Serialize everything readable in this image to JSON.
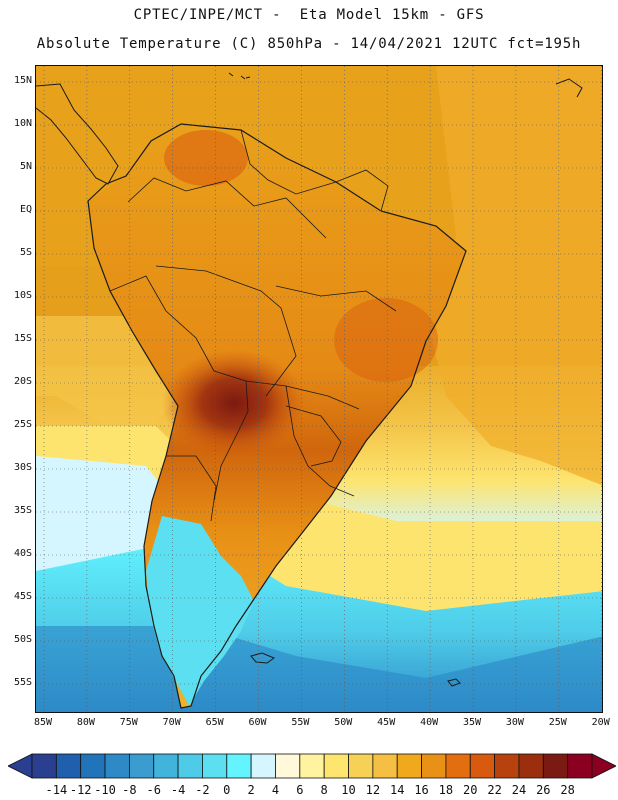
{
  "header": {
    "title_line_1": "CPTEC/INPE/MCT -  Eta Model 15km - GFS",
    "title_line_2": "Absolute Temperature (C) 850hPa - 14/04/2021 12UTC fct=195h"
  },
  "map": {
    "latitude_labels": [
      "15N",
      "10N",
      "5N",
      "EQ",
      "5S",
      "10S",
      "15S",
      "20S",
      "25S",
      "30S",
      "35S",
      "40S",
      "45S",
      "50S",
      "55S"
    ],
    "longitude_labels": [
      "85W",
      "80W",
      "75W",
      "70W",
      "65W",
      "60W",
      "55W",
      "50W",
      "45W",
      "40W",
      "35W",
      "30W",
      "25W",
      "20W"
    ]
  },
  "legend": {
    "labels": [
      "-14",
      "-12",
      "-10",
      "-8",
      "-6",
      "-4",
      "-2",
      "0",
      "2",
      "4",
      "6",
      "8",
      "10",
      "12",
      "14",
      "16",
      "18",
      "20",
      "22",
      "24",
      "26",
      "28"
    ],
    "colors": [
      "#2a3f8f",
      "#1f5fae",
      "#2174b9",
      "#2d8ac7",
      "#3b9ccf",
      "#42b4dc",
      "#4ecbe8",
      "#5cdff0",
      "#63f4ff",
      "#d6f6ff",
      "#fff8db",
      "#fff3a0",
      "#fde56e",
      "#f7d155",
      "#f4bf42",
      "#f0a91d",
      "#e99116",
      "#e36e10",
      "#d85a0e",
      "#b8420d",
      "#9a2e0d",
      "#7b1a12",
      "#8b0020"
    ]
  }
}
